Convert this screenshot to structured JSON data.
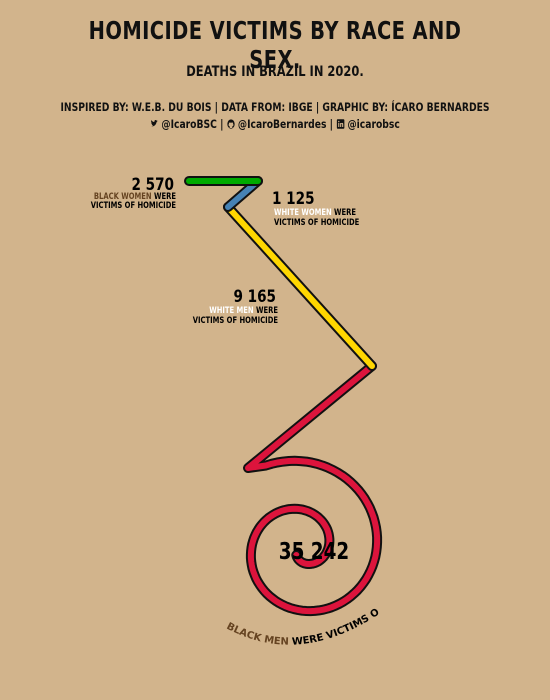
{
  "title": "HOMICIDE VICTIMS BY RACE AND SEX.",
  "subtitle": "DEATHS IN BRAZIL IN 2020.",
  "credits": {
    "line1": "INSPIRED BY: W.E.B. DU BOIS | DATA FROM: IBGE | GRAPHIC BY: ÍCARO BERNARDES",
    "twitter_icon": "twitter-icon",
    "twitter": "@IcaroBSC",
    "github_icon": "github-icon",
    "github": "@IcaroBernardes",
    "linkedin_icon": "linkedin-icon",
    "linkedin": "@icarobsc",
    "sep": "|"
  },
  "colors": {
    "background": "#d2b48c",
    "black_women": "#00aa00",
    "white_women": "#4682b4",
    "white_men": "#ffd700",
    "black_men": "#dc143c",
    "group_black": "#654321",
    "group_white": "#ffffff"
  },
  "chart_data": {
    "type": "spiral",
    "series": [
      {
        "name": "BLACK WOMEN",
        "value": 2570,
        "value_label": "2 570",
        "suffix_line1": "WERE",
        "suffix_line2": "VICTIMS OF HOMICIDE"
      },
      {
        "name": "WHITE WOMEN",
        "value": 1125,
        "value_label": "1 125",
        "suffix_line1": "WERE",
        "suffix_line2": "VICTIMS OF HOMICIDE"
      },
      {
        "name": "WHITE MEN",
        "value": 9165,
        "value_label": "9 165",
        "suffix_line1": "WERE",
        "suffix_line2": "VICTIMS OF HOMICIDE"
      },
      {
        "name": "BLACK MEN",
        "value": 35242,
        "value_label": "35 242",
        "suffix_line1": "WERE VICTIMS OF HOMICIDE"
      }
    ]
  }
}
